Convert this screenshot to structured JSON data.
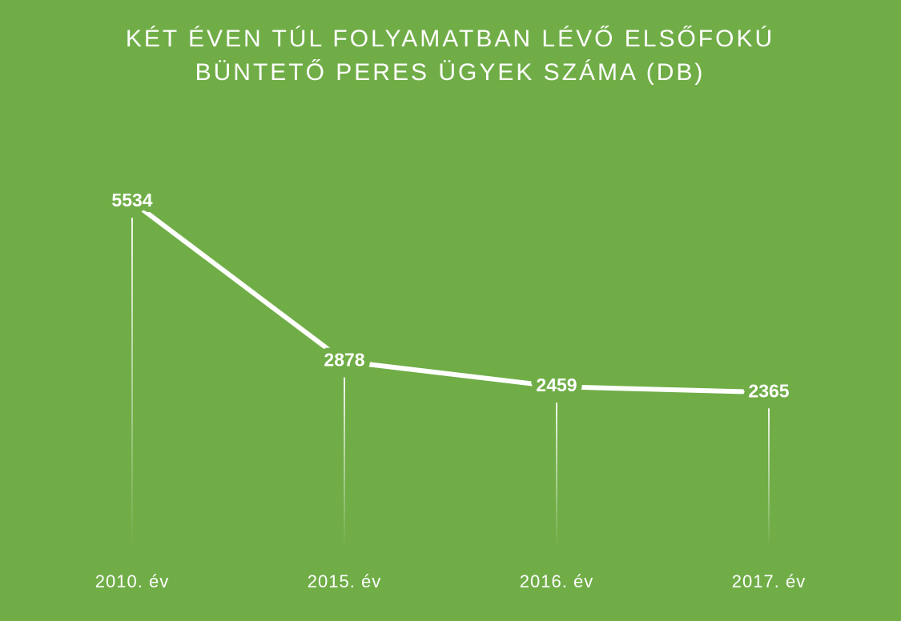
{
  "chart_data": {
    "type": "line",
    "title": [
      "KÉT ÉVEN TÚL FOLYAMATBAN LÉVŐ ELSŐFOKÚ",
      "BÜNTETŐ PERES ÜGYEK SZÁMA (DB)"
    ],
    "categories": [
      "2010. év",
      "2015. év",
      "2016. év",
      "2017. év"
    ],
    "values": [
      5534,
      2878,
      2459,
      2365
    ],
    "color": "#ffffff",
    "background": "#70ad47",
    "drop_lines": true
  }
}
